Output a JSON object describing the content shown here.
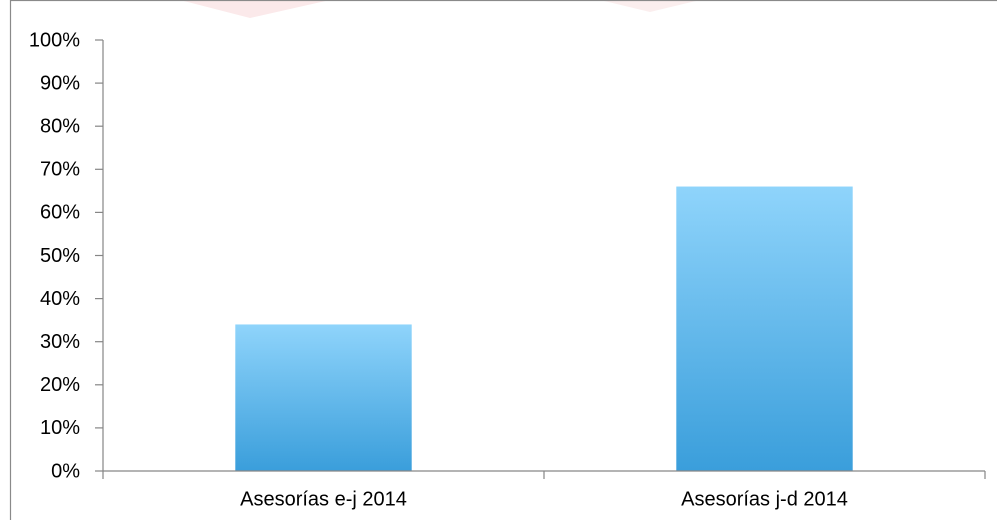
{
  "chart_data": {
    "type": "bar",
    "categories": [
      "Asesorías e-j 2014",
      "Asesorías j-d 2014"
    ],
    "values": [
      34,
      66
    ],
    "color": [
      "#8fd4fb",
      "#3a9edb"
    ],
    "ylim": [
      0,
      100
    ],
    "yticks": [
      {
        "value": 0,
        "label": "0%"
      },
      {
        "value": 10,
        "label": "10%"
      },
      {
        "value": 20,
        "label": "20%"
      },
      {
        "value": 30,
        "label": "30%"
      },
      {
        "value": 40,
        "label": "40%"
      },
      {
        "value": 50,
        "label": "50%"
      },
      {
        "value": 60,
        "label": "60%"
      },
      {
        "value": 70,
        "label": "70%"
      },
      {
        "value": 80,
        "label": "80%"
      },
      {
        "value": 90,
        "label": "90%"
      },
      {
        "value": 100,
        "label": "100%"
      }
    ],
    "grid": false
  }
}
